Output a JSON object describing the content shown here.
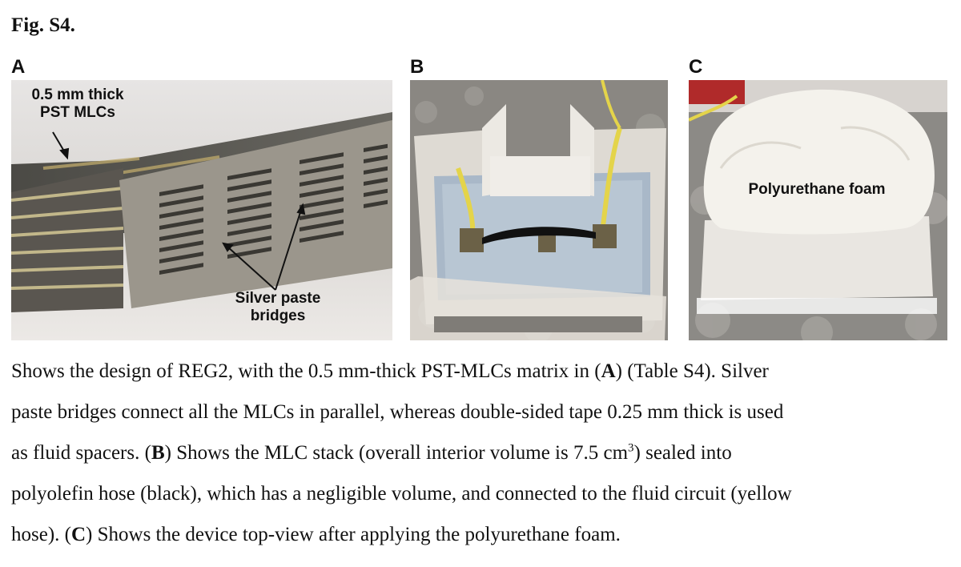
{
  "figure": {
    "title": "Fig. S4.",
    "panels": [
      {
        "letter": "A",
        "labels": [
          "0.5 mm thick",
          "PST MLCs",
          "Silver paste",
          "bridges"
        ]
      },
      {
        "letter": "B"
      },
      {
        "letter": "C",
        "labels": [
          "Polyurethane foam"
        ]
      }
    ]
  },
  "caption": {
    "line1": [
      "Shows the design of REG2, with the 0.5 mm-thick PST-MLCs matrix in (",
      "A",
      ") (Table S4). Silver"
    ],
    "line2": "paste bridges connect all the MLCs in parallel, whereas double-sided tape 0.25 mm thick is used",
    "line3": [
      "as fluid spacers. (",
      "B",
      ") Shows the MLC stack (overall interior volume is 7.5 cm",
      "3",
      ") sealed into"
    ],
    "line4": "polyolefin hose (black), which has a negligible volume, and connected to the fluid circuit (yellow",
    "line5": [
      "hose). (",
      "C",
      ") Shows the device top-view after applying the polyurethane foam."
    ]
  }
}
